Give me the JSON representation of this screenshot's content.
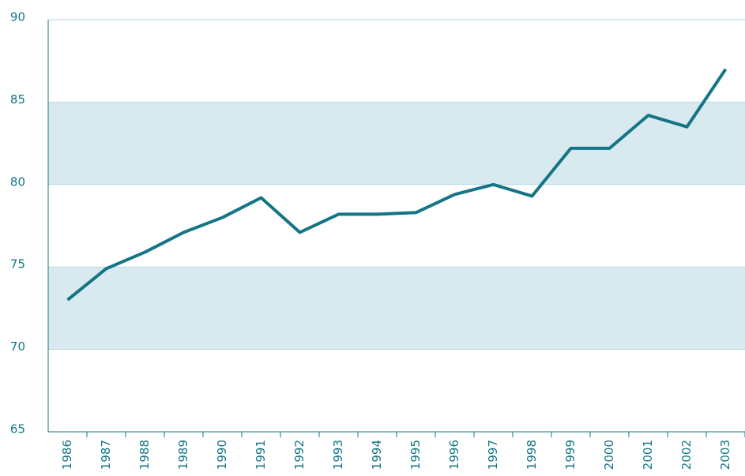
{
  "chart_data": {
    "type": "line",
    "categories": [
      "1986",
      "1987",
      "1988",
      "1989",
      "1990",
      "1991",
      "1992",
      "1993",
      "1994",
      "1995",
      "1996",
      "1997",
      "1998",
      "1999",
      "2000",
      "2001",
      "2002",
      "2003"
    ],
    "series": [
      {
        "color": "#147584",
        "values": [
          73.0,
          74.9,
          75.9,
          77.1,
          78.0,
          79.2,
          77.1,
          78.2,
          78.2,
          78.3,
          79.4,
          80.0,
          79.3,
          82.2,
          82.2,
          84.2,
          83.5,
          87.0
        ]
      }
    ],
    "ylim": [
      65,
      90
    ],
    "yticks": [
      65,
      70,
      75,
      80,
      85,
      90
    ],
    "grid": true,
    "alternate_band_color": "#d8e9ef"
  }
}
